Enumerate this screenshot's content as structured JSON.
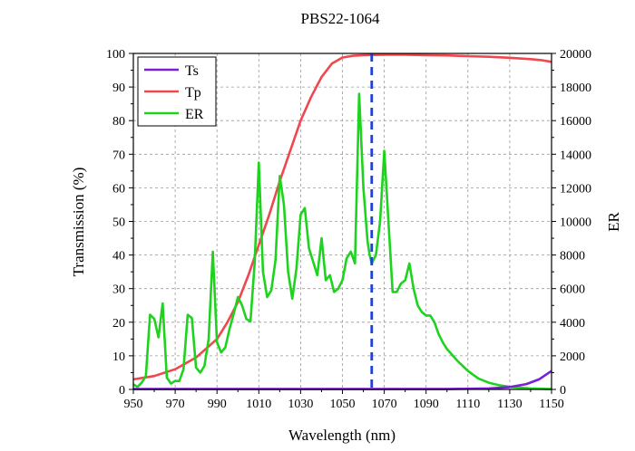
{
  "chart_data": {
    "type": "line",
    "title": "PBS22-1064",
    "xlabel": "Wavelength (nm)",
    "ylabel": "Transmission (%)",
    "y2label": "ER",
    "xlim": [
      950,
      1150
    ],
    "ylim": [
      0,
      100
    ],
    "y2lim": [
      0,
      20000
    ],
    "xticks": [
      950,
      970,
      990,
      1010,
      1030,
      1050,
      1070,
      1090,
      1110,
      1130,
      1150
    ],
    "yticks": [
      0,
      10,
      20,
      30,
      40,
      50,
      60,
      70,
      80,
      90,
      100
    ],
    "y2ticks": [
      0,
      2000,
      4000,
      6000,
      8000,
      10000,
      12000,
      14000,
      16000,
      18000,
      20000
    ],
    "grid": true,
    "legend_position": "top-left",
    "reference_line": {
      "x": 1064,
      "color": "#1f3fd6",
      "style": "dashed"
    },
    "series": [
      {
        "name": "Ts",
        "axis": "left",
        "color": "#7a1fd6",
        "x": [
          950,
          1000,
          1050,
          1100,
          1120,
          1130,
          1138,
          1144,
          1150
        ],
        "y": [
          0.1,
          0.1,
          0.1,
          0.1,
          0.3,
          0.7,
          1.6,
          3,
          5.5
        ]
      },
      {
        "name": "Tp",
        "axis": "left",
        "color": "#f0474f",
        "x": [
          950,
          960,
          970,
          980,
          990,
          995,
          1000,
          1005,
          1010,
          1015,
          1020,
          1025,
          1030,
          1035,
          1040,
          1045,
          1050,
          1055,
          1060,
          1070,
          1080,
          1090,
          1100,
          1110,
          1120,
          1130,
          1140,
          1145,
          1150
        ],
        "y": [
          3,
          4,
          6,
          9.5,
          15,
          20,
          26,
          34,
          43,
          52,
          62,
          71,
          80,
          87,
          93,
          97,
          98.8,
          99.3,
          99.5,
          99.6,
          99.6,
          99.5,
          99.4,
          99.2,
          99,
          98.7,
          98.3,
          98,
          97.5
        ]
      },
      {
        "name": "ER",
        "axis": "right",
        "color": "#1ed31e",
        "x": [
          950,
          952,
          954,
          956,
          958,
          960,
          962,
          964,
          966,
          968,
          970,
          972,
          974,
          976,
          978,
          980,
          982,
          984,
          986,
          988,
          990,
          992,
          994,
          996,
          998,
          1000,
          1002,
          1004,
          1006,
          1008,
          1010,
          1012,
          1014,
          1016,
          1018,
          1020,
          1022,
          1024,
          1026,
          1028,
          1030,
          1032,
          1034,
          1036,
          1038,
          1040,
          1042,
          1044,
          1046,
          1048,
          1050,
          1052,
          1054,
          1056,
          1058,
          1060,
          1062,
          1063,
          1064,
          1066,
          1068,
          1070,
          1072,
          1074,
          1076,
          1078,
          1080,
          1082,
          1084,
          1086,
          1088,
          1090,
          1092,
          1094,
          1096,
          1098,
          1100,
          1105,
          1110,
          1115,
          1120,
          1125,
          1130,
          1135,
          1140,
          1145,
          1150
        ],
        "y": [
          300,
          150,
          400,
          800,
          4450,
          4200,
          3100,
          5120,
          700,
          350,
          500,
          500,
          1200,
          4450,
          4250,
          1300,
          1000,
          1400,
          3000,
          8200,
          2800,
          2200,
          2500,
          3600,
          4500,
          5500,
          5000,
          4200,
          4050,
          7500,
          13500,
          7000,
          5500,
          5900,
          7700,
          12700,
          11000,
          7000,
          5400,
          7200,
          10400,
          10800,
          8400,
          7600,
          6800,
          9000,
          6500,
          6800,
          5800,
          6000,
          6500,
          7800,
          8200,
          7500,
          17600,
          12000,
          8800,
          8000,
          7500,
          8000,
          10000,
          14200,
          10000,
          5800,
          5800,
          6300,
          6500,
          7500,
          6000,
          5000,
          4600,
          4400,
          4400,
          4000,
          3300,
          2800,
          2400,
          1700,
          1100,
          650,
          400,
          250,
          150,
          100,
          60,
          40,
          20
        ]
      }
    ]
  }
}
